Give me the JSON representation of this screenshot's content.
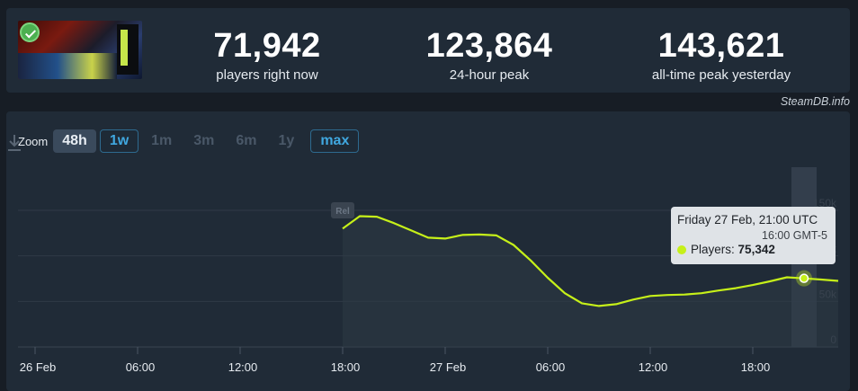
{
  "stats": [
    {
      "value": "71,942",
      "label": "players right now"
    },
    {
      "value": "123,864",
      "label": "24-hour peak"
    },
    {
      "value": "143,621",
      "label": "all-time peak yesterday"
    }
  ],
  "credit": "SteamDB.info",
  "zoom": {
    "label": "Zoom",
    "buttons": [
      {
        "label": "48h",
        "state": "active"
      },
      {
        "label": "1w",
        "state": "available"
      },
      {
        "label": "1m",
        "state": "disabled"
      },
      {
        "label": "3m",
        "state": "disabled"
      },
      {
        "label": "6m",
        "state": "disabled"
      },
      {
        "label": "1y",
        "state": "disabled"
      },
      {
        "label": "max",
        "state": "available"
      }
    ]
  },
  "release_flag": "Rel",
  "tooltip": {
    "date": "Friday 27 Feb, 21:00 UTC",
    "local_time": "16:00 GMT-5",
    "series_label": "Players:",
    "value": "75,342"
  },
  "colors": {
    "line": "#c6f019",
    "background": "#202b37"
  },
  "chart_data": {
    "type": "area",
    "title": "",
    "xlabel": "",
    "ylabel": "",
    "x_ticks": [
      "26 Feb",
      "06:00",
      "12:00",
      "18:00",
      "27 Feb",
      "06:00",
      "12:00",
      "18:00"
    ],
    "x_tick_hours": [
      0,
      6,
      12,
      18,
      24,
      30,
      36,
      42
    ],
    "y_ticks": [
      "0",
      "50k",
      "100k",
      "150k"
    ],
    "y_tick_values": [
      0,
      50000,
      100000,
      150000
    ],
    "ylim": [
      0,
      150000
    ],
    "grid": true,
    "hovered_hour": 45,
    "series": [
      {
        "hours": [
          18,
          19,
          20,
          21,
          22,
          23,
          24,
          25,
          26,
          27,
          28,
          29,
          30,
          31,
          32,
          33,
          34,
          35,
          36,
          37,
          38,
          39,
          40,
          41,
          42,
          43,
          44,
          45,
          46,
          47
        ],
        "values": [
          130000,
          143621,
          143000,
          136000,
          128000,
          120000,
          119000,
          123000,
          123500,
          122500,
          112000,
          95000,
          76000,
          59000,
          48000,
          45000,
          47000,
          52000,
          56000,
          57000,
          57500,
          59000,
          62000,
          64500,
          68000,
          72000,
          76500,
          75342,
          74000,
          72500
        ]
      }
    ]
  }
}
